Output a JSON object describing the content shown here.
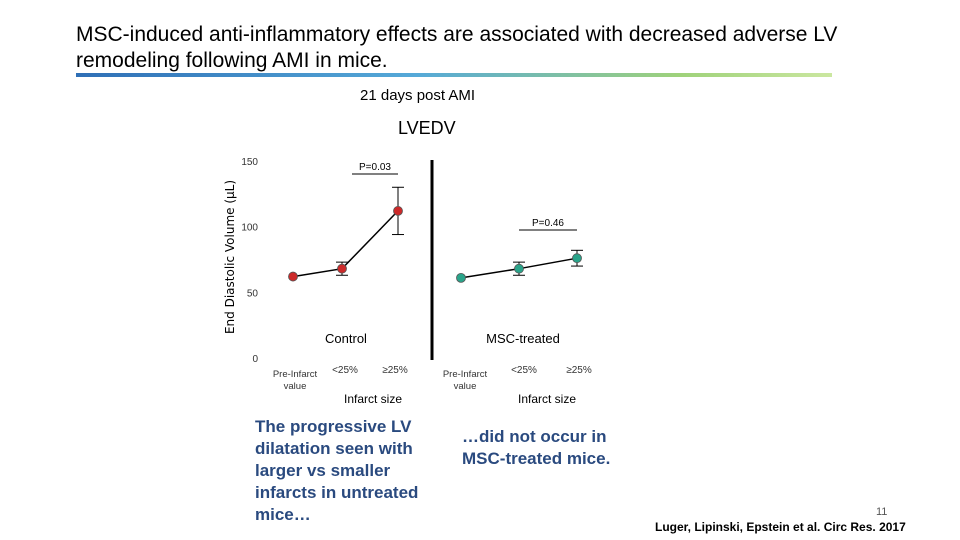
{
  "title": "MSC-induced anti-inflammatory effects are associated with decreased adverse LV remodeling following AMI in mice.",
  "subtitle": "21 days post AMI",
  "chart_data": {
    "type": "line",
    "title": "LVEDV",
    "ylabel": "End Diastolic Volume (µL)",
    "ylim": [
      0,
      150
    ],
    "yticks": [
      0,
      50,
      100,
      150
    ],
    "categories": [
      "Pre-Infarct value",
      "<25%",
      "≥25%"
    ],
    "xlabel": "Infarct size",
    "series": [
      {
        "name": "Control",
        "color": "#cc2a2a",
        "values": [
          62,
          68,
          112
        ],
        "err": [
          0,
          5,
          18
        ],
        "pvalue": "P=0.03"
      },
      {
        "name": "MSC-treated",
        "color": "#2aa48a",
        "values": [
          61,
          68,
          76
        ],
        "err": [
          0,
          5,
          6
        ],
        "pvalue": "P=0.46"
      }
    ]
  },
  "left_text": "The progressive LV dilatation seen with larger vs smaller infarcts in untreated mice…",
  "right_text": "…did not occur in MSC-treated mice.",
  "slide_number": "11",
  "citation": "Luger, Lipinski, Epstein et al. Circ Res. 2017"
}
